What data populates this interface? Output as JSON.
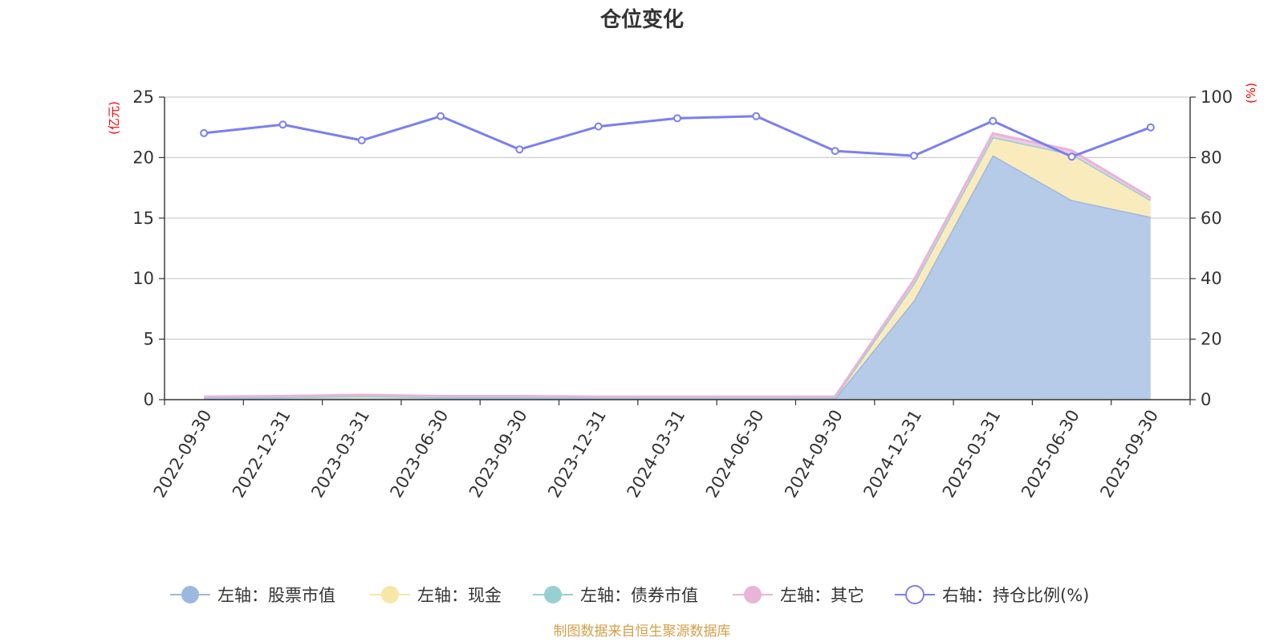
{
  "chart_data": {
    "type": "area",
    "title": "仓位变化",
    "left_unit": "(亿元)",
    "right_unit": "(%)",
    "categories": [
      "2022-09-30",
      "2022-12-31",
      "2023-03-31",
      "2023-06-30",
      "2023-09-30",
      "2023-12-31",
      "2024-03-31",
      "2024-06-30",
      "2024-09-30",
      "2024-12-31",
      "2025-03-31",
      "2025-06-30",
      "2025-09-30"
    ],
    "ylim_left": [
      0,
      25
    ],
    "yticks_left": [
      "0",
      "5",
      "10",
      "15",
      "20",
      "25"
    ],
    "ylim_right": [
      0,
      100
    ],
    "yticks_right": [
      "0",
      "20",
      "40",
      "60",
      "80",
      "100"
    ],
    "grid": true,
    "legend_position": "bottom",
    "stacked": true,
    "series": [
      {
        "name": "左轴：股票市值",
        "axis": "left",
        "color": "#9db8e0",
        "fill": "#b5cbe8",
        "values": [
          0.1,
          0.1,
          0.1,
          0.1,
          0.1,
          0.1,
          0.1,
          0.1,
          0.1,
          8.2,
          20.2,
          16.5,
          15.1
        ]
      },
      {
        "name": "左轴：现金",
        "axis": "left",
        "color": "#f7e7a6",
        "fill": "#faebbd",
        "values": [
          0.1,
          0.1,
          0.2,
          0.1,
          0.1,
          0.1,
          0.1,
          0.1,
          0.1,
          1.4,
          1.5,
          3.8,
          1.4
        ]
      },
      {
        "name": "左轴：债券市值",
        "axis": "left",
        "color": "#96d0d0",
        "fill": "#b6dcdc",
        "values": [
          0,
          0,
          0,
          0,
          0,
          0,
          0,
          0,
          0,
          0,
          0,
          0,
          0
        ]
      },
      {
        "name": "左轴：其它",
        "axis": "left",
        "color": "#e8b4d8",
        "fill": "#eecbe3",
        "values": [
          0.05,
          0.1,
          0.1,
          0.1,
          0.1,
          0.05,
          0.05,
          0.05,
          0.05,
          0.3,
          0.3,
          0.3,
          0.2
        ]
      },
      {
        "name": "右轴：持仓比例(%)",
        "axis": "right",
        "color": "#7a7ff0",
        "values": [
          88.1,
          90.9,
          85.7,
          93.7,
          82.7,
          90.3,
          93.0,
          93.7,
          82.2,
          80.6,
          92.1,
          80.3,
          90.0
        ]
      }
    ]
  },
  "footer": {
    "source": "制图数据来自恒生聚源数据库",
    "source_color": "#d4a04a"
  },
  "colors": {
    "unit_label": "#ff0000",
    "grid": "#cccccc",
    "axis": "#333333"
  }
}
